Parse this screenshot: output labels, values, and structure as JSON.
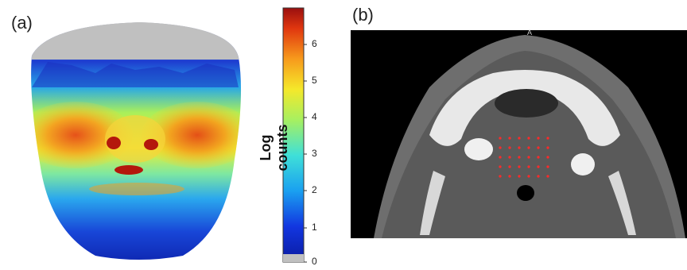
{
  "panels": {
    "a_label": "(a)",
    "b_label": "(b)"
  },
  "colorbar": {
    "title": "Log counts",
    "ticks": [
      "6",
      "5",
      "4",
      "3",
      "2",
      "1",
      "0"
    ],
    "range": [
      0,
      7
    ]
  },
  "ct": {
    "orientation_marker": "A"
  },
  "colors": {
    "low": "#0b1fb5",
    "mid": "#f0e226",
    "high": "#c01a10",
    "gray": "#c0c0c0",
    "dot": "#ff2a2a"
  }
}
